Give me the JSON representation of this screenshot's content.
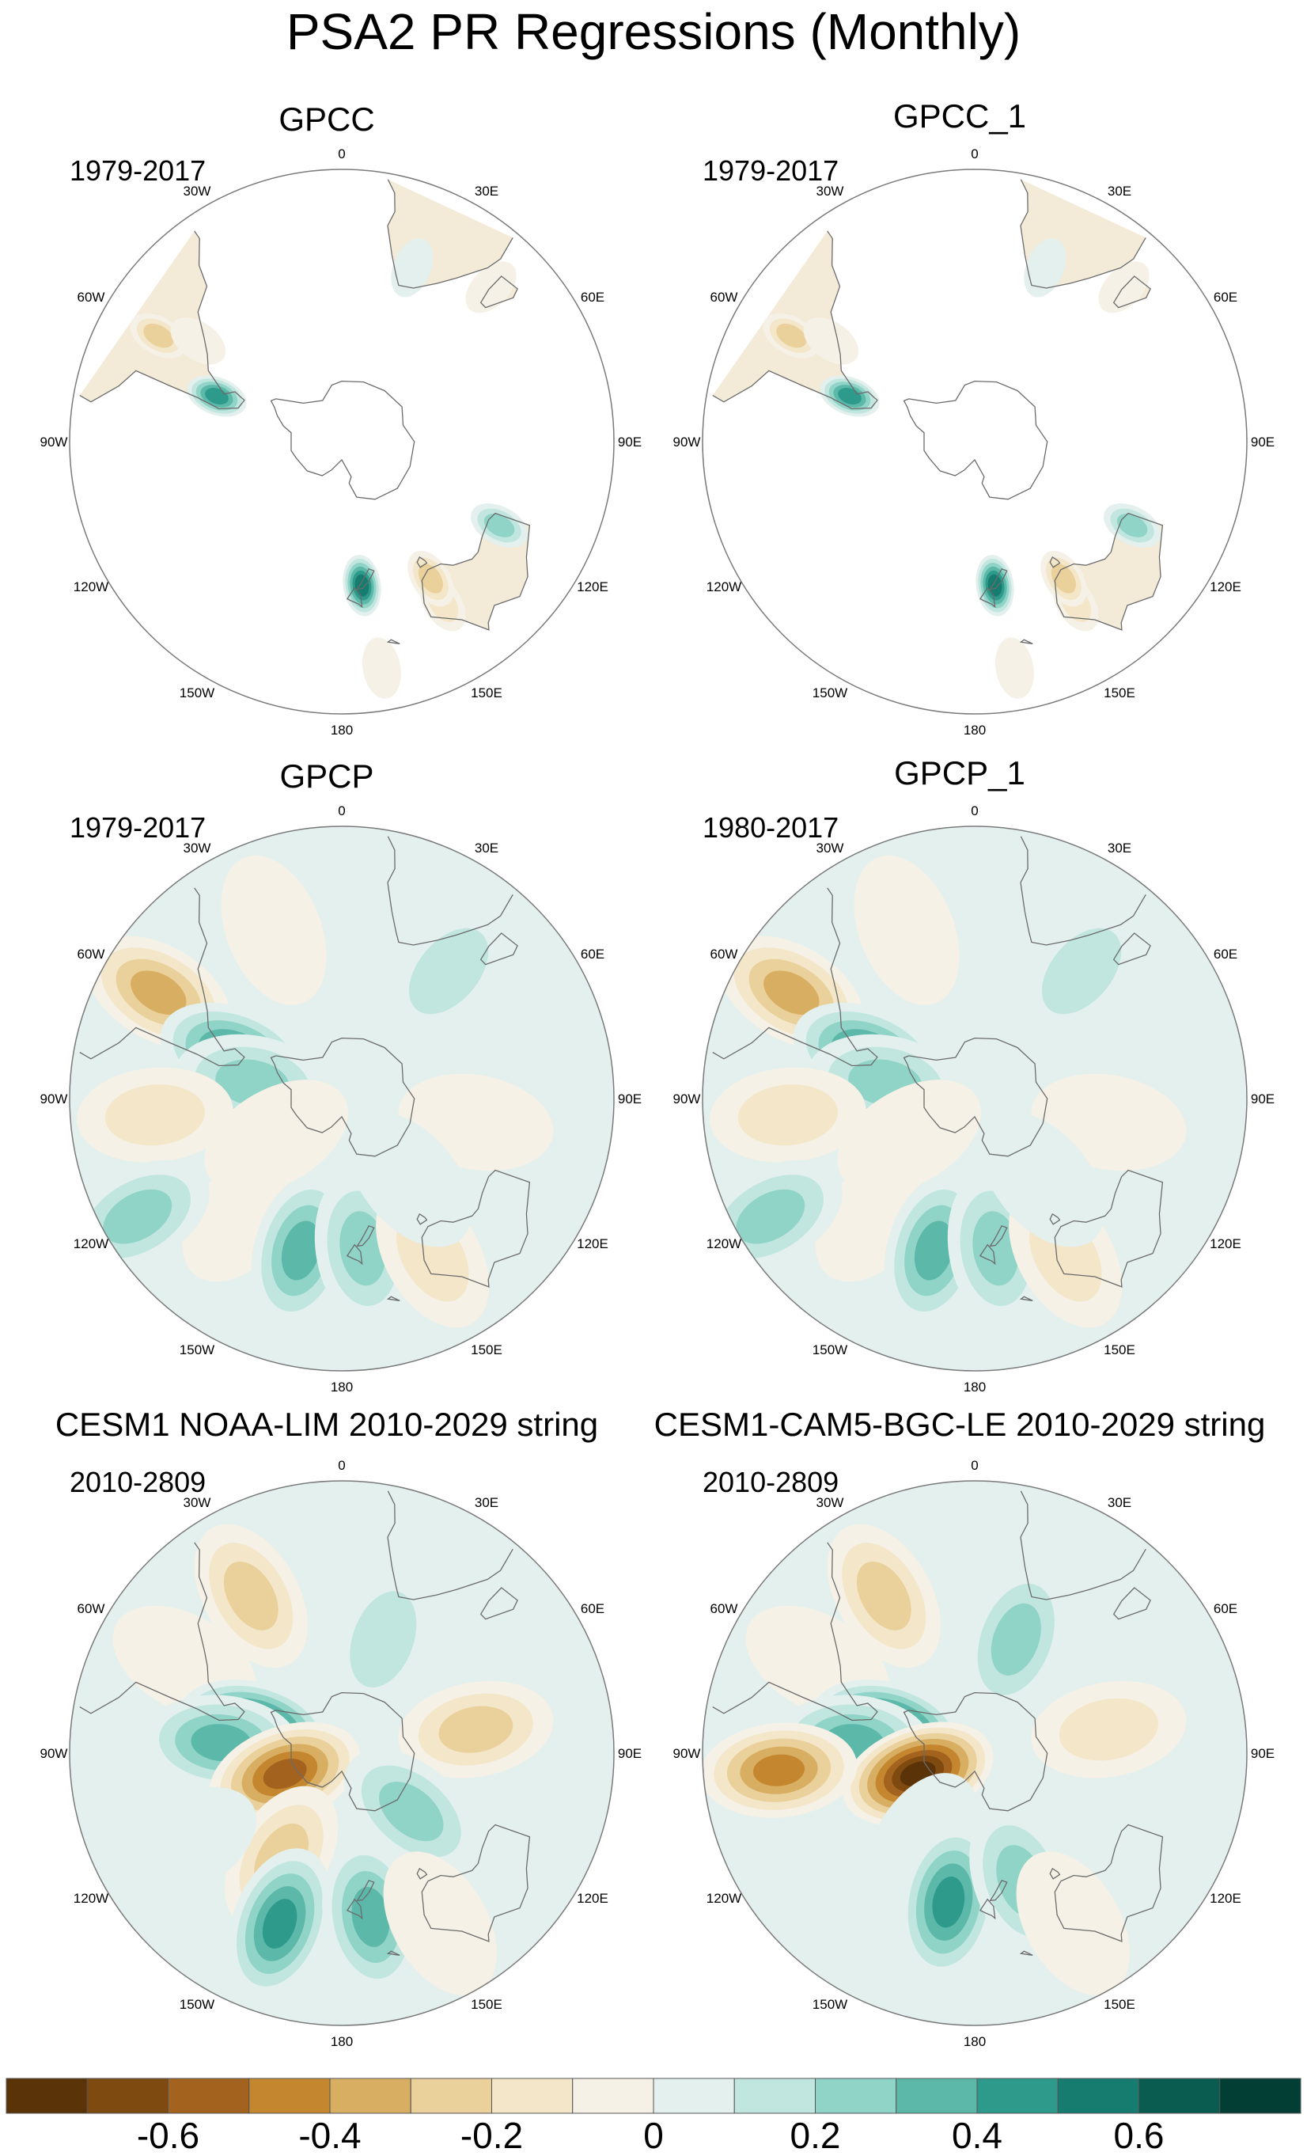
{
  "figure": {
    "title": "PSA2 PR Regressions (Monthly)"
  },
  "lon_labels": [
    "0",
    "30E",
    "60E",
    "90E",
    "120E",
    "150E",
    "180",
    "150W",
    "120W",
    "90W",
    "60W",
    "30W"
  ],
  "panels": [
    {
      "title": "GPCC",
      "period": "1979-2017",
      "coverage": "land"
    },
    {
      "title": "GPCC_1",
      "period": "1979-2017",
      "coverage": "land"
    },
    {
      "title": "GPCP",
      "period": "1979-2017",
      "coverage": "global"
    },
    {
      "title": "GPCP_1",
      "period": "1980-2017",
      "coverage": "global"
    },
    {
      "title": "CESM1 NOAA-LIM 2010-2029 string",
      "period": "2010-2809",
      "coverage": "global"
    },
    {
      "title": "CESM1-CAM5-BGC-LE 2010-2029 string",
      "period": "2010-2809",
      "coverage": "global"
    }
  ],
  "colorbar": {
    "labels": [
      "-0.6",
      "-0.4",
      "-0.2",
      "0",
      "0.2",
      "0.4",
      "0.6"
    ],
    "label_values": [
      -0.6,
      -0.4,
      -0.2,
      0,
      0.2,
      0.4,
      0.6
    ],
    "levels": [
      -0.8,
      -0.7,
      -0.6,
      -0.5,
      -0.4,
      -0.3,
      -0.2,
      -0.1,
      0,
      0.1,
      0.2,
      0.3,
      0.4,
      0.5,
      0.6,
      0.7,
      0.8
    ],
    "colors": [
      "#5a3309",
      "#7f4a10",
      "#a3631e",
      "#c4862f",
      "#d8ae62",
      "#ead09a",
      "#f4e6c8",
      "#f5f1e6",
      "#e3f0ee",
      "#c1e6e0",
      "#90d3c7",
      "#5cb9aa",
      "#2e9a8c",
      "#157c6f",
      "#0a5c50",
      "#023e34"
    ]
  },
  "chart_data": [
    {
      "type": "heatmap",
      "projection": "south-polar-stereographic",
      "title": "GPCC",
      "period": "1979-2017",
      "variable": "precipitation regression on PSA2 (monthly)",
      "features": [
        {
          "lon": -60,
          "lat": -20,
          "value": -0.35
        },
        {
          "lon": -55,
          "lat": -32,
          "value": -0.15
        },
        {
          "lon": -70,
          "lat": -46,
          "value": 0.5
        },
        {
          "lon": 22,
          "lat": -28,
          "value": 0.1
        },
        {
          "lon": 44,
          "lat": -19,
          "value": -0.15
        },
        {
          "lon": 118,
          "lat": -31,
          "value": 0.3
        },
        {
          "lon": 148,
          "lat": -27,
          "value": -0.2
        },
        {
          "lon": 147,
          "lat": -36,
          "value": -0.35
        },
        {
          "lon": 172,
          "lat": -42,
          "value": 0.55
        },
        {
          "lon": 170,
          "lat": -14,
          "value": -0.15
        }
      ]
    },
    {
      "type": "heatmap",
      "projection": "south-polar-stereographic",
      "title": "GPCC_1",
      "period": "1979-2017",
      "variable": "precipitation regression on PSA2 (monthly)",
      "features": [
        {
          "lon": -60,
          "lat": -20,
          "value": -0.35
        },
        {
          "lon": -55,
          "lat": -32,
          "value": -0.15
        },
        {
          "lon": -70,
          "lat": -46,
          "value": 0.5
        },
        {
          "lon": 22,
          "lat": -28,
          "value": 0.1
        },
        {
          "lon": 44,
          "lat": -19,
          "value": -0.15
        },
        {
          "lon": 118,
          "lat": -31,
          "value": 0.3
        },
        {
          "lon": 148,
          "lat": -27,
          "value": -0.2
        },
        {
          "lon": 147,
          "lat": -36,
          "value": -0.35
        },
        {
          "lon": 172,
          "lat": -42,
          "value": 0.55
        },
        {
          "lon": 170,
          "lat": -14,
          "value": -0.15
        }
      ]
    },
    {
      "type": "heatmap",
      "projection": "south-polar-stereographic",
      "title": "GPCP",
      "period": "1979-2017",
      "variable": "precipitation regression on PSA2 (monthly)",
      "features": [
        {
          "lon": -60,
          "lat": -20,
          "value": -0.4
        },
        {
          "lon": -22,
          "lat": -30,
          "value": -0.15
        },
        {
          "lon": -68,
          "lat": -52,
          "value": 0.45
        },
        {
          "lon": -80,
          "lat": -60,
          "value": 0.3
        },
        {
          "lon": -95,
          "lat": -28,
          "value": -0.2
        },
        {
          "lon": -140,
          "lat": -40,
          "value": -0.15
        },
        {
          "lon": -120,
          "lat": -12,
          "value": 0.25
        },
        {
          "lon": -165,
          "lat": -38,
          "value": 0.4
        },
        {
          "lon": 172,
          "lat": -40,
          "value": 0.35
        },
        {
          "lon": 150,
          "lat": -30,
          "value": -0.2
        },
        {
          "lon": 40,
          "lat": -35,
          "value": 0.2
        },
        {
          "lon": 100,
          "lat": -45,
          "value": -0.1
        },
        {
          "lon": 140,
          "lat": -55,
          "value": 0.15
        },
        {
          "lon": -120,
          "lat": -65,
          "value": -0.1
        }
      ]
    },
    {
      "type": "heatmap",
      "projection": "south-polar-stereographic",
      "title": "GPCP_1",
      "period": "1980-2017",
      "variable": "precipitation regression on PSA2 (monthly)",
      "features": [
        {
          "lon": -60,
          "lat": -20,
          "value": -0.4
        },
        {
          "lon": -22,
          "lat": -30,
          "value": -0.15
        },
        {
          "lon": -68,
          "lat": -52,
          "value": 0.45
        },
        {
          "lon": -80,
          "lat": -60,
          "value": 0.3
        },
        {
          "lon": -95,
          "lat": -28,
          "value": -0.2
        },
        {
          "lon": -140,
          "lat": -40,
          "value": -0.15
        },
        {
          "lon": -120,
          "lat": -12,
          "value": 0.25
        },
        {
          "lon": -165,
          "lat": -38,
          "value": 0.4
        },
        {
          "lon": 172,
          "lat": -40,
          "value": 0.35
        },
        {
          "lon": 150,
          "lat": -30,
          "value": -0.2
        },
        {
          "lon": 40,
          "lat": -35,
          "value": 0.2
        },
        {
          "lon": 100,
          "lat": -45,
          "value": -0.1
        },
        {
          "lon": 140,
          "lat": -55,
          "value": 0.15
        },
        {
          "lon": -120,
          "lat": -65,
          "value": -0.1
        }
      ]
    },
    {
      "type": "heatmap",
      "projection": "south-polar-stereographic",
      "title": "CESM1 NOAA-LIM 2010-2029 string",
      "period": "2010-2809",
      "variable": "precipitation regression on PSA2 (monthly)",
      "features": [
        {
          "lon": -30,
          "lat": -30,
          "value": -0.35
        },
        {
          "lon": -60,
          "lat": -30,
          "value": -0.15
        },
        {
          "lon": -75,
          "lat": -60,
          "value": 0.7
        },
        {
          "lon": -85,
          "lat": -50,
          "value": 0.4
        },
        {
          "lon": -110,
          "lat": -70,
          "value": -0.6
        },
        {
          "lon": -150,
          "lat": -50,
          "value": -0.3
        },
        {
          "lon": -120,
          "lat": -30,
          "value": 0.1
        },
        {
          "lon": 80,
          "lat": -45,
          "value": -0.3
        },
        {
          "lon": 20,
          "lat": -50,
          "value": 0.2
        },
        {
          "lon": 130,
          "lat": -60,
          "value": 0.25
        },
        {
          "lon": -160,
          "lat": -30,
          "value": 0.45
        },
        {
          "lon": 170,
          "lat": -35,
          "value": 0.4
        },
        {
          "lon": 150,
          "lat": -25,
          "value": -0.15
        }
      ]
    },
    {
      "type": "heatmap",
      "projection": "south-polar-stereographic",
      "title": "CESM1-CAM5-BGC-LE 2010-2029 string",
      "period": "2010-2809",
      "variable": "precipitation regression on PSA2 (monthly)",
      "features": [
        {
          "lon": -30,
          "lat": -30,
          "value": -0.3
        },
        {
          "lon": -60,
          "lat": -30,
          "value": -0.15
        },
        {
          "lon": -75,
          "lat": -60,
          "value": 0.7
        },
        {
          "lon": -85,
          "lat": -50,
          "value": 0.4
        },
        {
          "lon": -110,
          "lat": -70,
          "value": -0.75
        },
        {
          "lon": -95,
          "lat": -25,
          "value": -0.5
        },
        {
          "lon": -150,
          "lat": -55,
          "value": 0.15
        },
        {
          "lon": 80,
          "lat": -45,
          "value": -0.2
        },
        {
          "lon": 20,
          "lat": -50,
          "value": 0.25
        },
        {
          "lon": -170,
          "lat": -40,
          "value": 0.5
        },
        {
          "lon": 160,
          "lat": -45,
          "value": 0.3
        },
        {
          "lon": 150,
          "lat": -25,
          "value": -0.15
        }
      ]
    }
  ]
}
